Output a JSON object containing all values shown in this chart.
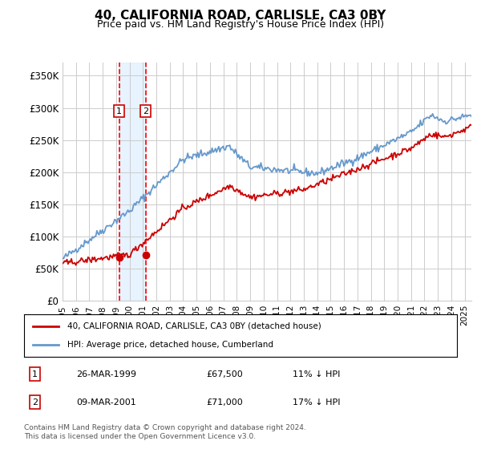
{
  "title": "40, CALIFORNIA ROAD, CARLISLE, CA3 0BY",
  "subtitle": "Price paid vs. HM Land Registry's House Price Index (HPI)",
  "ylabel_ticks": [
    "£0",
    "£50K",
    "£100K",
    "£150K",
    "£200K",
    "£250K",
    "£300K",
    "£350K"
  ],
  "ytick_values": [
    0,
    50000,
    100000,
    150000,
    200000,
    250000,
    300000,
    350000
  ],
  "ylim": [
    0,
    370000
  ],
  "xlim_start": 1995.0,
  "xlim_end": 2025.5,
  "sale1": {
    "date_num": 1999.23,
    "price": 67500,
    "label": "1"
  },
  "sale2": {
    "date_num": 2001.19,
    "price": 71000,
    "label": "2"
  },
  "legend_line1": "40, CALIFORNIA ROAD, CARLISLE, CA3 0BY (detached house)",
  "legend_line2": "HPI: Average price, detached house, Cumberland",
  "table_row1": [
    "1",
    "26-MAR-1999",
    "£67,500",
    "11% ↓ HPI"
  ],
  "table_row2": [
    "2",
    "09-MAR-2001",
    "£71,000",
    "17% ↓ HPI"
  ],
  "footer": "Contains HM Land Registry data © Crown copyright and database right 2024.\nThis data is licensed under the Open Government Licence v3.0.",
  "hpi_color": "#6699cc",
  "price_color": "#cc0000",
  "sale_dot_color": "#cc0000",
  "vline_color": "#ff0000",
  "shade_color": "#ddeeff",
  "grid_color": "#cccccc",
  "bg_color": "#ffffff"
}
